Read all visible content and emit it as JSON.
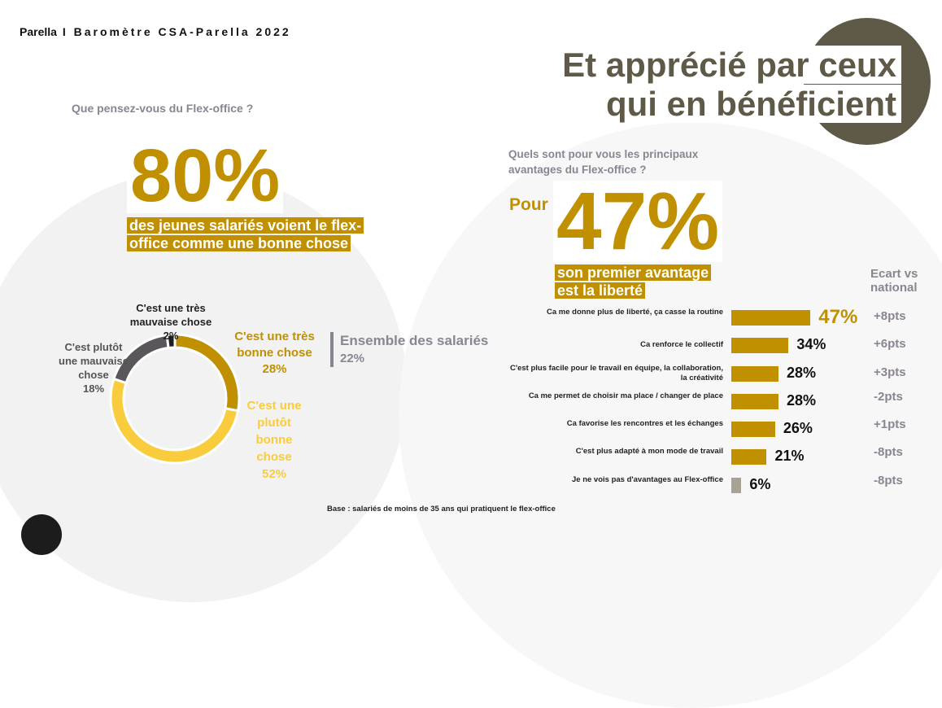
{
  "header": {
    "brand": "Parella",
    "title": "I Baromètre CSA-Parella 2022"
  },
  "title": {
    "line1": "Et apprécié par ceux",
    "line2": "qui en bénéficient"
  },
  "left": {
    "question": "Que pensez-vous du Flex-office ?",
    "big": "80%",
    "sub1": "des jeunes salariés voient le flex-",
    "sub2": "office comme une bonne chose",
    "ensemble_label": "Ensemble des salariés",
    "ensemble_value": "22%"
  },
  "chart_data": [
    {
      "type": "pie",
      "donut": true,
      "title": "Que pensez-vous du Flex-office ?",
      "slices": [
        {
          "label": "C'est une très bonne chose",
          "value": 28,
          "display": "28%",
          "color": "#c09000"
        },
        {
          "label": "C'est une plutôt bonne chose",
          "value": 52,
          "display": "52%",
          "color": "#f9cc3e"
        },
        {
          "label": "C'est plutôt une mauvaise chose",
          "value": 18,
          "display": "18%",
          "color": "#5a565b"
        },
        {
          "label": "C'est une très mauvaise chose",
          "value": 2,
          "display": "2%",
          "color": "#1e1e1e"
        }
      ]
    },
    {
      "type": "bar",
      "orientation": "horizontal",
      "title": "Quels sont pour vous les principaux avantages du Flex-office ?",
      "xlim": [
        0,
        100
      ],
      "categories": [
        "Ca me donne plus de liberté, ça casse la routine",
        "Ca renforce le collectif",
        "C'est plus facile pour le travail en équipe, la collaboration, la créativité",
        "Ca me permet de choisir ma place / changer de place",
        "Ca favorise les rencontres et les échanges",
        "C'est plus adapté à mon mode de travail",
        "Je ne vois pas d'avantages au Flex-office"
      ],
      "values": [
        47,
        34,
        28,
        28,
        26,
        21,
        6
      ],
      "labels": [
        "47%",
        "34%",
        "28%",
        "28%",
        "26%",
        "21%",
        "6%"
      ],
      "ecart_header": "Ecart vs national",
      "ecart": [
        "+8pts",
        "+6pts",
        "+3pts",
        "-2pts",
        "+1pts",
        "-8pts",
        "-8pts"
      ],
      "colors": {
        "main": "#c09000",
        "none": "#a8a294"
      }
    }
  ],
  "right": {
    "question": "Quels sont pour vous les principaux avantages du Flex-office ?",
    "pour": "Pour",
    "big": "47%",
    "sub1": "son premier avantage",
    "sub2": "est la liberté"
  },
  "footer": {
    "base": "Base : salariés de moins de 35 ans qui pratiquent le flex-office"
  }
}
